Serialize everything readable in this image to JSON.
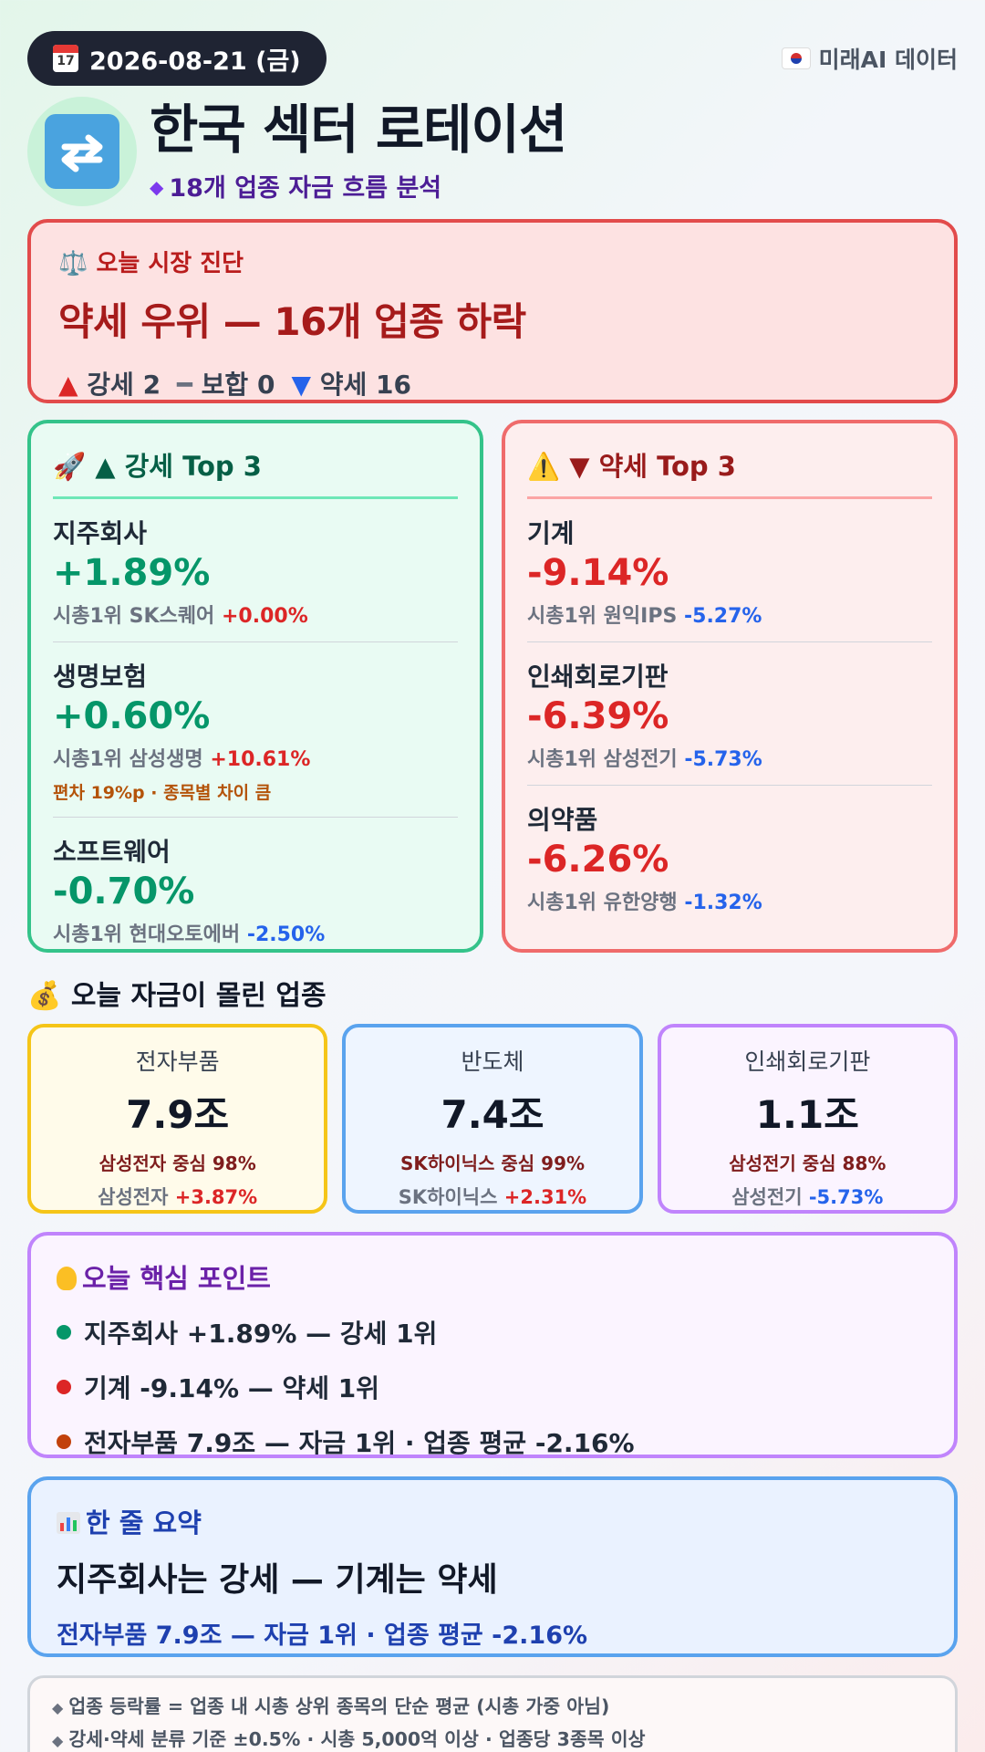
{
  "header": {
    "date": "2026-08-21 (금)",
    "calendar_day": "17",
    "brand": "미래AI 데이터",
    "title": "한국 섹터 로테이션",
    "subtitle": "18개 업종 자금 흐름 분석"
  },
  "diagnosis": {
    "label": "오늘 시장 진단",
    "headline": "약세 우위 — 16개 업종 하락",
    "counts": {
      "up_label": "강세 2",
      "flat_label": "보합 0",
      "down_label": "약세 16"
    }
  },
  "top_up": {
    "heading": "강세 Top 3",
    "items": [
      {
        "name": "지주회사",
        "pct": "+1.89%",
        "lead_label": "시총1위 SK스퀘어",
        "lead_pct": "+0.00%",
        "note": ""
      },
      {
        "name": "생명보험",
        "pct": "+0.60%",
        "lead_label": "시총1위 삼성생명",
        "lead_pct": "+10.61%",
        "note": "편차 19%p · 종목별 차이 큼"
      },
      {
        "name": "소프트웨어",
        "pct": "-0.70%",
        "lead_label": "시총1위 현대오토에버",
        "lead_pct": "-2.50%",
        "note": ""
      }
    ]
  },
  "top_down": {
    "heading": "약세 Top 3",
    "items": [
      {
        "name": "기계",
        "pct": "-9.14%",
        "lead_label": "시총1위 원익IPS",
        "lead_pct": "-5.27%"
      },
      {
        "name": "인쇄회로기판",
        "pct": "-6.39%",
        "lead_label": "시총1위 삼성전기",
        "lead_pct": "-5.73%"
      },
      {
        "name": "의약품",
        "pct": "-6.26%",
        "lead_label": "시총1위 유한양행",
        "lead_pct": "-1.32%"
      }
    ]
  },
  "flow": {
    "title": "오늘 자금이 몰린 업종",
    "cards": [
      {
        "name": "전자부품",
        "amount": "7.9조",
        "share": "삼성전자 중심 98%",
        "lead_name": "삼성전자",
        "lead_pct": "+3.87%",
        "border": "#f5c518",
        "bg": "#fffbea"
      },
      {
        "name": "반도체",
        "amount": "7.4조",
        "share": "SK하이닉스 중심 99%",
        "lead_name": "SK하이닉스",
        "lead_pct": "+2.31%",
        "border": "#5aa3ee",
        "bg": "#eef5ff"
      },
      {
        "name": "인쇄회로기판",
        "amount": "1.1조",
        "share": "삼성전기 중심 88%",
        "lead_name": "삼성전기",
        "lead_pct": "-5.73%",
        "border": "#c084fc",
        "bg": "#fbf4ff"
      }
    ]
  },
  "key_points": {
    "heading": "오늘 핵심 포인트",
    "items": [
      {
        "text": "지주회사 +1.89% — 강세 1위",
        "color": "#059669"
      },
      {
        "text": "기계 -9.14% — 약세 1위",
        "color": "#dc2626"
      },
      {
        "text": "전자부품 7.9조 — 자금 1위 · 업종 평균 -2.16%",
        "color": "#c2410c"
      }
    ]
  },
  "summary": {
    "heading": "한 줄 요약",
    "main": "지주회사는 강세 — 기계는 약세",
    "sub": "전자부품 7.9조 — 자금 1위 · 업종 평균 -2.16%"
  },
  "footnotes": [
    "업종 등락률 = 업종 내 시총 상위 종목의 단순 평균 (시총 가중 아님)",
    "강세·약세 분류 기준 ±0.5% · 시총 5,000억 이상 · 업종당 3종목 이상"
  ],
  "icons": {
    "calendar": "calendar-icon",
    "flag": "korea-flag-icon",
    "logo": "rotate-arrows-icon",
    "scale": "balance-scale-icon",
    "rocket": "rocket-icon",
    "warning": "warning-icon",
    "money": "money-bag-icon",
    "bulb": "lightbulb-icon",
    "chart": "bar-chart-icon"
  }
}
